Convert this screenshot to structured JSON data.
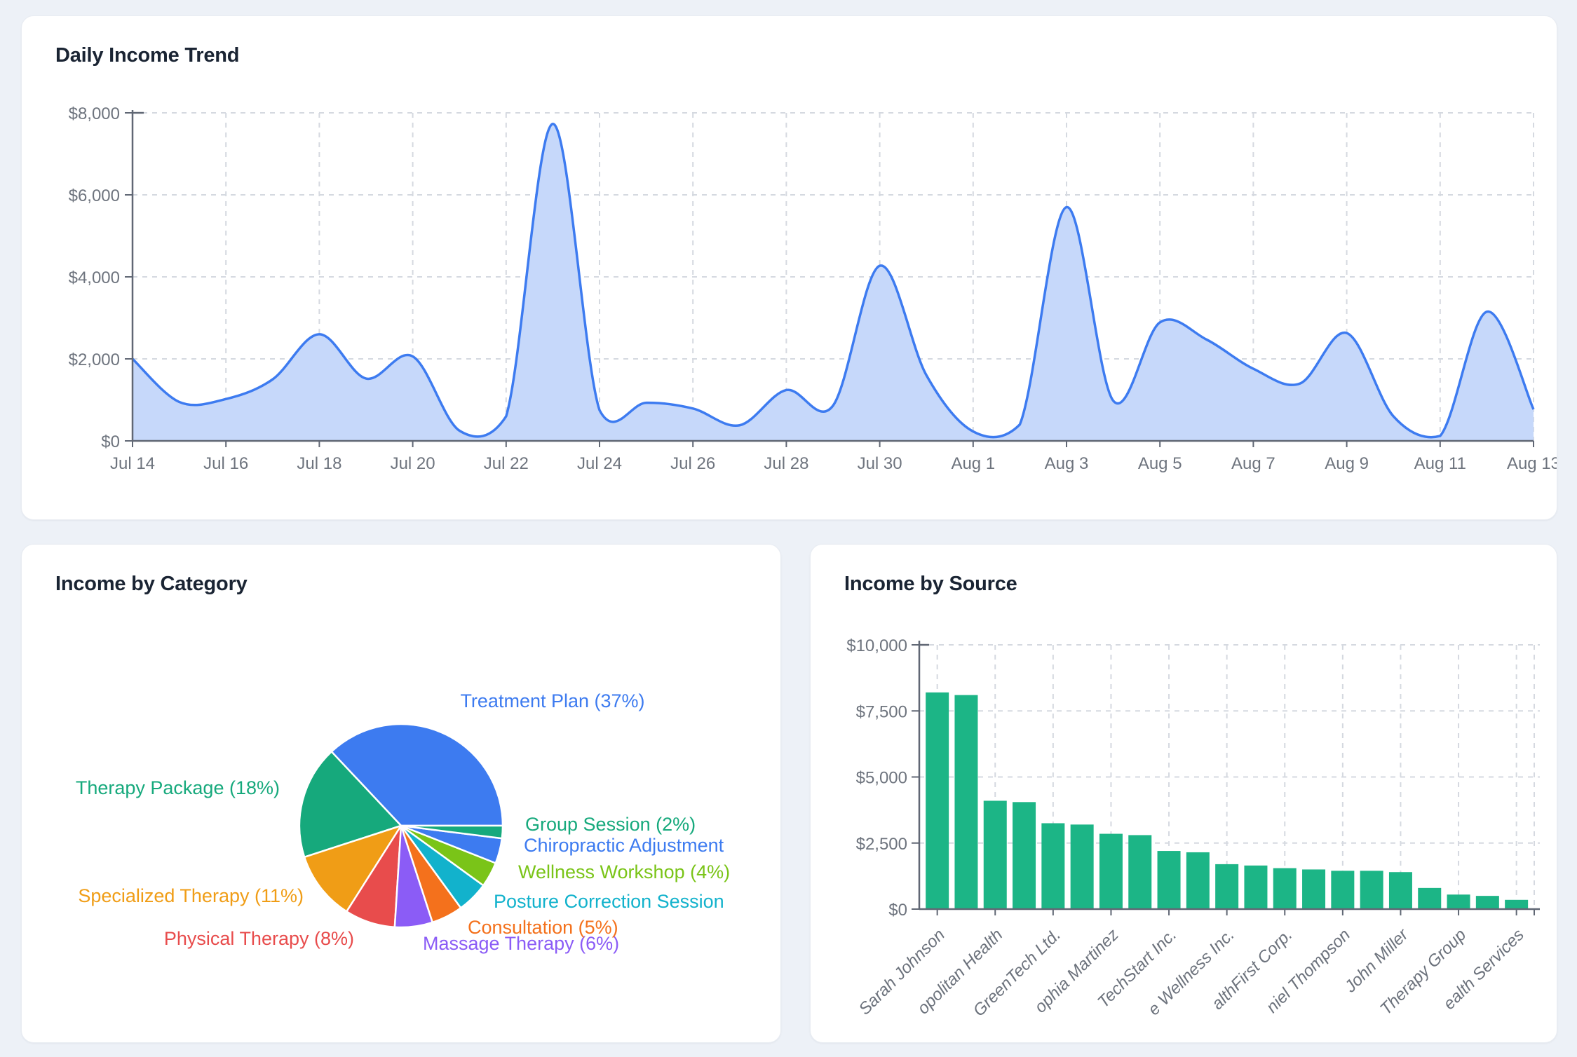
{
  "page": {
    "background_color": "#edf1f7",
    "card_background": "#ffffff"
  },
  "chart_data": [
    {
      "id": "trend",
      "type": "area",
      "title": "Daily Income Trend",
      "x": [
        "Jul 14",
        "Jul 15",
        "Jul 16",
        "Jul 17",
        "Jul 18",
        "Jul 19",
        "Jul 20",
        "Jul 21",
        "Jul 22",
        "Jul 23",
        "Jul 24",
        "Jul 25",
        "Jul 26",
        "Jul 27",
        "Jul 28",
        "Jul 29",
        "Jul 30",
        "Jul 31",
        "Aug 1",
        "Aug 2",
        "Aug 3",
        "Aug 4",
        "Aug 5",
        "Aug 6",
        "Aug 7",
        "Aug 8",
        "Aug 9",
        "Aug 10",
        "Aug 11",
        "Aug 12",
        "Aug 13"
      ],
      "values": [
        2000,
        950,
        1020,
        1500,
        2600,
        1520,
        2060,
        250,
        600,
        7730,
        750,
        930,
        790,
        380,
        1240,
        860,
        4270,
        1600,
        230,
        400,
        5700,
        980,
        2890,
        2470,
        1760,
        1400,
        2630,
        600,
        120,
        3150,
        770
      ],
      "x_tick_labels": [
        "Jul 14",
        "Jul 16",
        "Jul 18",
        "Jul 20",
        "Jul 22",
        "Jul 24",
        "Jul 26",
        "Jul 28",
        "Jul 30",
        "Aug 1",
        "Aug 3",
        "Aug 5",
        "Aug 7",
        "Aug 9",
        "Aug 11",
        "Aug 13"
      ],
      "y_tick_labels": [
        "$0",
        "$2,000",
        "$4,000",
        "$6,000",
        "$8,000"
      ],
      "ylim": [
        0,
        8000
      ],
      "grid": "dashed",
      "line_color": "#3d7bf0",
      "fill_color": "#c6d8fa"
    },
    {
      "id": "category",
      "type": "pie",
      "title": "Income by Category",
      "slices": [
        {
          "label": "Treatment Plan (37%)",
          "pct": 37,
          "color": "#3d7bf0"
        },
        {
          "label": "Therapy Package (18%)",
          "pct": 18,
          "color": "#16a97c"
        },
        {
          "label": "Specialized Therapy (11%)",
          "pct": 11,
          "color": "#f09d16"
        },
        {
          "label": "Physical Therapy (8%)",
          "pct": 8,
          "color": "#e84c4c"
        },
        {
          "label": "Massage Therapy (6%)",
          "pct": 6,
          "color": "#8b5cf6"
        },
        {
          "label": "Consultation (5%)",
          "pct": 5,
          "color": "#f4711c"
        },
        {
          "label": "Posture Correction Session",
          "pct": 5,
          "color": "#12b2cc"
        },
        {
          "label": "Wellness Workshop (4%)",
          "pct": 4,
          "color": "#7ac418"
        },
        {
          "label": "Chiropractic Adjustment",
          "pct": 4,
          "color": "#3d7bf0"
        },
        {
          "label": "Group Session (2%)",
          "pct": 2,
          "color": "#16a97c"
        }
      ],
      "legend": "none"
    },
    {
      "id": "source",
      "type": "bar",
      "title": "Income by Source",
      "values": [
        8200,
        8100,
        4100,
        4050,
        3250,
        3200,
        2850,
        2800,
        2200,
        2150,
        1700,
        1650,
        1550,
        1500,
        1450,
        1450,
        1400,
        800,
        550,
        500,
        350
      ],
      "x_tick_labels": [
        "Sarah Johnson",
        "opolitan Health",
        "GreenTech Ltd.",
        "ophia Martinez",
        "TechStart Inc.",
        "e Wellness Inc.",
        "althFirst Corp.",
        "niel Thompson",
        "John Miller",
        "Therapy Group",
        "ealth Services"
      ],
      "y_tick_labels": [
        "$0",
        "$2,500",
        "$5,000",
        "$7,500",
        "$10,000"
      ],
      "ylim": [
        0,
        10000
      ],
      "grid": "dashed",
      "bar_color": "#1cb586"
    }
  ]
}
